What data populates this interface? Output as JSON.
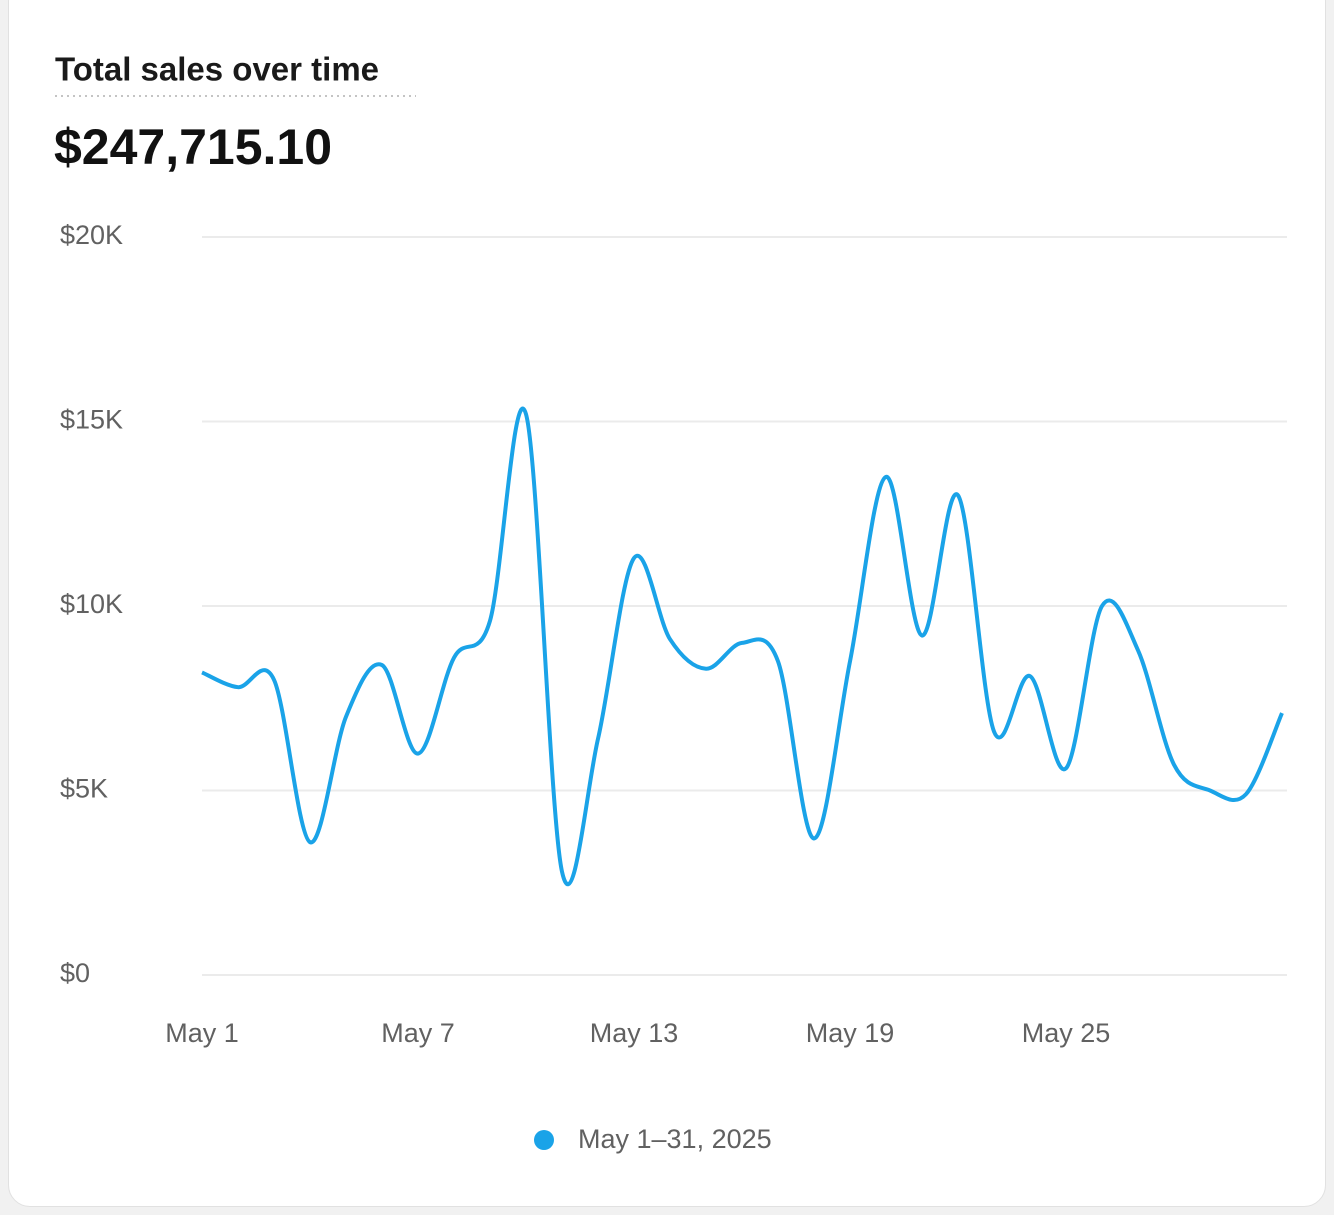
{
  "chart_data": {
    "type": "line",
    "title": "Total sales over time",
    "headline": "$247,715.10",
    "categories": [
      "May 1",
      null,
      null,
      null,
      null,
      null,
      "May 7",
      null,
      null,
      null,
      null,
      null,
      "May 13",
      null,
      null,
      null,
      null,
      null,
      "May 19",
      null,
      null,
      null,
      null,
      null,
      "May 25",
      null,
      null,
      null,
      null,
      null,
      null
    ],
    "series": [
      {
        "name": "May 1–31, 2025",
        "color": "#1aa3e8",
        "values": [
          8200,
          7800,
          8000,
          3600,
          7000,
          8400,
          6000,
          8600,
          9600,
          15200,
          2800,
          6400,
          11300,
          9100,
          8300,
          9000,
          8500,
          3700,
          8500,
          13500,
          9200,
          13000,
          6600,
          8100,
          5600,
          10000,
          8800,
          5700,
          5000,
          4900,
          7100
        ]
      }
    ],
    "ylim": [
      0,
      20000
    ],
    "yticks": [
      {
        "value": 0,
        "label": "$0"
      },
      {
        "value": 5000,
        "label": "$5K"
      },
      {
        "value": 10000,
        "label": "$10K"
      },
      {
        "value": 15000,
        "label": "$15K"
      },
      {
        "value": 20000,
        "label": "$20K"
      }
    ],
    "grid": true
  }
}
